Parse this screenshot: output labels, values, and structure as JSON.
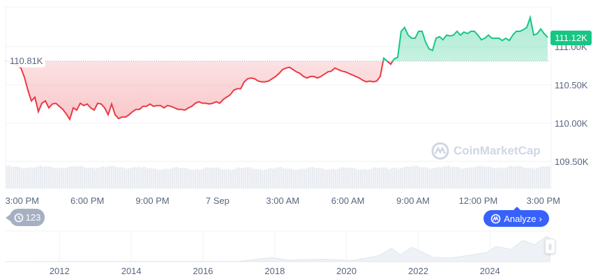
{
  "chart_data": {
    "type": "area",
    "start_time": "2025-09-06T14:18",
    "end_time": "2025-09-07T15:12",
    "baseline": 110.81,
    "baseline_label": "110.81K",
    "current_price_label": "111.12K",
    "ylim": [
      109.3,
      111.55
    ],
    "y_ticks": [
      {
        "v": 111.0,
        "label": "111.00K"
      },
      {
        "v": 110.5,
        "label": "110.50K"
      },
      {
        "v": 110.0,
        "label": "110.00K"
      },
      {
        "v": 109.5,
        "label": "109.50K"
      }
    ],
    "x_ticks": [
      {
        "t": "2025-09-06T15:00",
        "label": "3:00 PM"
      },
      {
        "t": "2025-09-06T18:00",
        "label": "6:00 PM"
      },
      {
        "t": "2025-09-06T21:00",
        "label": "9:00 PM"
      },
      {
        "t": "2025-09-07T00:00",
        "label": "7 Sep"
      },
      {
        "t": "2025-09-07T03:00",
        "label": "3:00 AM"
      },
      {
        "t": "2025-09-07T06:00",
        "label": "6:00 AM"
      },
      {
        "t": "2025-09-07T09:00",
        "label": "9:00 AM"
      },
      {
        "t": "2025-09-07T12:00",
        "label": "12:00 PM"
      },
      {
        "t": "2025-09-07T15:00",
        "label": "3:00 PM"
      }
    ],
    "values": [
      110.82,
      110.8,
      110.78,
      110.75,
      110.72,
      110.6,
      110.43,
      110.29,
      110.34,
      110.15,
      110.26,
      110.29,
      110.2,
      110.25,
      110.26,
      110.22,
      110.18,
      110.12,
      110.05,
      110.2,
      110.17,
      110.26,
      110.23,
      110.25,
      110.2,
      110.17,
      110.26,
      110.25,
      110.2,
      110.11,
      110.25,
      110.11,
      110.06,
      110.08,
      110.08,
      110.11,
      110.15,
      110.18,
      110.18,
      110.22,
      110.22,
      110.25,
      110.22,
      110.23,
      110.23,
      110.2,
      110.23,
      110.22,
      110.2,
      110.18,
      110.18,
      110.17,
      110.2,
      110.22,
      110.26,
      110.28,
      110.26,
      110.26,
      110.25,
      110.26,
      110.28,
      110.26,
      110.31,
      110.34,
      110.37,
      110.43,
      110.45,
      110.45,
      110.54,
      110.58,
      110.59,
      110.58,
      110.55,
      110.54,
      110.54,
      110.55,
      110.58,
      110.61,
      110.65,
      110.7,
      110.72,
      110.73,
      110.7,
      110.67,
      110.65,
      110.61,
      110.59,
      110.61,
      110.61,
      110.59,
      110.61,
      110.64,
      110.67,
      110.68,
      110.72,
      110.7,
      110.68,
      110.67,
      110.65,
      110.63,
      110.61,
      110.59,
      110.56,
      110.54,
      110.55,
      110.54,
      110.55,
      110.61,
      110.85,
      110.81,
      110.77,
      110.84,
      110.86,
      111.2,
      111.25,
      111.15,
      111.11,
      111.11,
      111.2,
      111.2,
      111.06,
      110.97,
      110.95,
      111.11,
      111.13,
      111.09,
      111.15,
      111.14,
      111.15,
      111.2,
      111.15,
      111.19,
      111.17,
      111.2,
      111.2,
      111.15,
      111.09,
      111.11,
      111.15,
      111.11,
      111.11,
      111.11,
      111.08,
      111.11,
      111.08,
      111.15,
      111.2,
      111.2,
      111.22,
      111.25,
      111.38,
      111.15,
      111.17,
      111.23,
      111.17,
      111.12
    ],
    "colors": {
      "up": "#16c784",
      "down": "#ea3943",
      "volume": "#e8ebf0",
      "grid": "#eff2f5",
      "text": "#58667e"
    },
    "navigator": {
      "x_labels": [
        "2012",
        "2014",
        "2016",
        "2018",
        "2020",
        "2022",
        "2024"
      ],
      "range": [
        "2010-07",
        "2025-09"
      ],
      "history": [
        [
          "2010-07",
          0
        ],
        [
          "2013-12",
          1
        ],
        [
          "2017-01",
          1
        ],
        [
          "2017-12",
          19
        ],
        [
          "2018-06",
          7
        ],
        [
          "2019-06",
          12
        ],
        [
          "2020-03",
          5
        ],
        [
          "2020-12",
          29
        ],
        [
          "2021-04",
          63
        ],
        [
          "2021-07",
          33
        ],
        [
          "2021-11",
          68
        ],
        [
          "2022-06",
          20
        ],
        [
          "2022-12",
          17
        ],
        [
          "2023-06",
          30
        ],
        [
          "2023-12",
          43
        ],
        [
          "2024-03",
          72
        ],
        [
          "2024-08",
          58
        ],
        [
          "2024-12",
          100
        ],
        [
          "2025-04",
          80
        ],
        [
          "2025-08",
          120
        ],
        [
          "2025-09",
          111
        ]
      ]
    }
  },
  "ui": {
    "history_count": "123",
    "history_icon": "history-clock-icon",
    "analyze_label": "Analyze",
    "analyze_icon": "ai-spark-icon",
    "watermark": "CoinMarketCap",
    "accent": "#3861fb"
  }
}
